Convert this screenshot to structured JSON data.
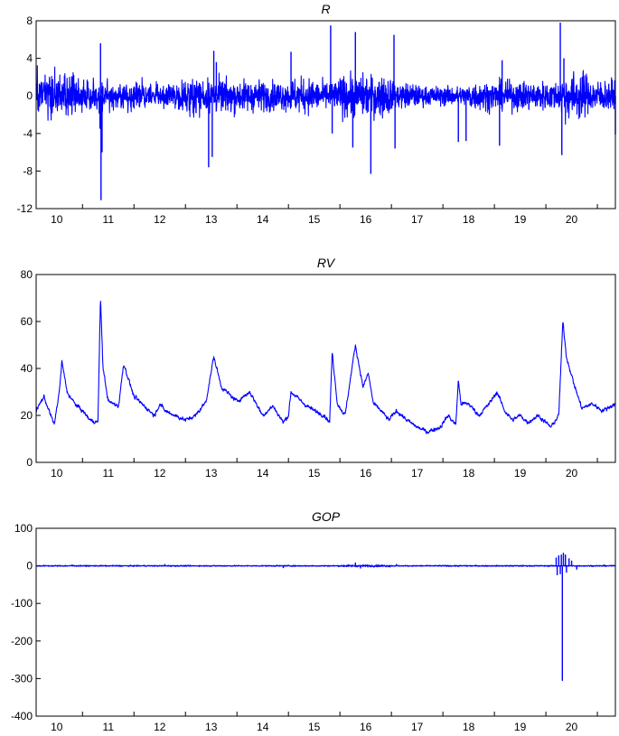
{
  "chart_data": [
    {
      "type": "line",
      "title": "R",
      "ylim": [
        -12,
        8
      ],
      "yticks": [
        8,
        4,
        0,
        -4,
        -8,
        -12
      ],
      "xlim": [
        2009.6,
        2020.85
      ],
      "xticks": [
        "10",
        "11",
        "12",
        "13",
        "14",
        "15",
        "16",
        "17",
        "18",
        "19",
        "20"
      ],
      "series_color": "#0000ff",
      "baseline": 0,
      "noise": 1.3,
      "clip": [
        -4.5,
        3.5
      ],
      "regimes": [
        [
          2009.6,
          1.4
        ],
        [
          2010.5,
          1.1
        ],
        [
          2011.0,
          0.8
        ],
        [
          2012.5,
          1.1
        ],
        [
          2013.2,
          1.0
        ],
        [
          2014.0,
          0.9
        ],
        [
          2014.5,
          1.1
        ],
        [
          2015.0,
          0.9
        ],
        [
          2015.5,
          1.3
        ],
        [
          2016.5,
          0.8
        ],
        [
          2017.0,
          0.6
        ],
        [
          2018.0,
          0.9
        ],
        [
          2019.0,
          0.9
        ],
        [
          2019.8,
          1.5
        ],
        [
          2020.3,
          1.0
        ]
      ],
      "spikes": [
        [
          2010.85,
          5.6
        ],
        [
          2010.86,
          -11.1
        ],
        [
          2010.88,
          -6.0
        ],
        [
          2010.84,
          -3.5
        ],
        [
          2012.95,
          -7.6
        ],
        [
          2013.02,
          -6.5
        ],
        [
          2013.05,
          4.8
        ],
        [
          2013.1,
          3.6
        ],
        [
          2014.55,
          4.7
        ],
        [
          2015.32,
          7.5
        ],
        [
          2015.35,
          -4.0
        ],
        [
          2015.75,
          -5.5
        ],
        [
          2015.8,
          6.8
        ],
        [
          2016.1,
          -8.3
        ],
        [
          2016.55,
          6.5
        ],
        [
          2016.57,
          -5.6
        ],
        [
          2017.8,
          -4.9
        ],
        [
          2017.95,
          -4.8
        ],
        [
          2018.6,
          -5.3
        ],
        [
          2018.65,
          3.8
        ],
        [
          2019.78,
          7.8
        ],
        [
          2019.81,
          -6.3
        ],
        [
          2019.85,
          4.0
        ],
        [
          2020.85,
          -4.1
        ]
      ]
    },
    {
      "type": "line",
      "title": "RV",
      "ylim": [
        0,
        80
      ],
      "yticks": [
        80,
        60,
        40,
        20,
        0
      ],
      "xlim": [
        2009.6,
        2020.85
      ],
      "xticks": [
        "10",
        "11",
        "12",
        "13",
        "14",
        "15",
        "16",
        "17",
        "18",
        "19",
        "20"
      ],
      "series_color": "#0000ff",
      "noise": 1.2,
      "points": [
        [
          2009.6,
          22
        ],
        [
          2009.75,
          28
        ],
        [
          2009.85,
          22
        ],
        [
          2009.95,
          16
        ],
        [
          2010.05,
          30
        ],
        [
          2010.1,
          43
        ],
        [
          2010.2,
          30
        ],
        [
          2010.35,
          25
        ],
        [
          2010.5,
          22
        ],
        [
          2010.65,
          18
        ],
        [
          2010.8,
          17
        ],
        [
          2010.85,
          70
        ],
        [
          2010.9,
          40
        ],
        [
          2011.0,
          26
        ],
        [
          2011.2,
          24
        ],
        [
          2011.3,
          42
        ],
        [
          2011.5,
          28
        ],
        [
          2011.7,
          24
        ],
        [
          2011.9,
          20
        ],
        [
          2012.0,
          25
        ],
        [
          2012.1,
          22
        ],
        [
          2012.3,
          20
        ],
        [
          2012.5,
          18
        ],
        [
          2012.7,
          20
        ],
        [
          2012.9,
          26
        ],
        [
          2013.05,
          45
        ],
        [
          2013.2,
          32
        ],
        [
          2013.5,
          26
        ],
        [
          2013.75,
          30
        ],
        [
          2014.0,
          20
        ],
        [
          2014.2,
          24
        ],
        [
          2014.4,
          17
        ],
        [
          2014.5,
          20
        ],
        [
          2014.55,
          30
        ],
        [
          2014.8,
          25
        ],
        [
          2015.0,
          22
        ],
        [
          2015.2,
          20
        ],
        [
          2015.3,
          17
        ],
        [
          2015.35,
          47
        ],
        [
          2015.45,
          25
        ],
        [
          2015.6,
          20
        ],
        [
          2015.8,
          50
        ],
        [
          2015.95,
          32
        ],
        [
          2016.05,
          38
        ],
        [
          2016.15,
          25
        ],
        [
          2016.3,
          22
        ],
        [
          2016.45,
          18
        ],
        [
          2016.6,
          22
        ],
        [
          2016.8,
          18
        ],
        [
          2017.0,
          15
        ],
        [
          2017.2,
          13
        ],
        [
          2017.45,
          15
        ],
        [
          2017.6,
          20
        ],
        [
          2017.75,
          16
        ],
        [
          2017.8,
          35
        ],
        [
          2017.85,
          25
        ],
        [
          2018.0,
          25
        ],
        [
          2018.2,
          20
        ],
        [
          2018.4,
          25
        ],
        [
          2018.55,
          30
        ],
        [
          2018.7,
          22
        ],
        [
          2018.85,
          18
        ],
        [
          2019.0,
          20
        ],
        [
          2019.15,
          17
        ],
        [
          2019.35,
          20
        ],
        [
          2019.6,
          15
        ],
        [
          2019.75,
          20
        ],
        [
          2019.8,
          45
        ],
        [
          2019.83,
          60
        ],
        [
          2019.9,
          45
        ],
        [
          2020.05,
          33
        ],
        [
          2020.2,
          23
        ],
        [
          2020.4,
          25
        ],
        [
          2020.6,
          22
        ],
        [
          2020.85,
          25
        ]
      ]
    },
    {
      "type": "line",
      "title": "GOP",
      "ylim": [
        -400,
        100
      ],
      "yticks": [
        100,
        0,
        -100,
        -200,
        -300,
        -400
      ],
      "xlim": [
        2009.6,
        2020.85
      ],
      "xticks": [
        "10",
        "11",
        "12",
        "13",
        "14",
        "15",
        "16",
        "17",
        "18",
        "19",
        "20"
      ],
      "series_color": "#0000ff",
      "baseline": 0,
      "noise": 1.2,
      "regimes": [
        [
          2009.6,
          1.0
        ],
        [
          2015.5,
          1.8
        ],
        [
          2016.5,
          1.0
        ]
      ],
      "spikes": [
        [
          2010.3,
          4
        ],
        [
          2012.1,
          5
        ],
        [
          2014.4,
          -6
        ],
        [
          2015.8,
          9
        ],
        [
          2015.9,
          -7
        ],
        [
          2016.6,
          5
        ],
        [
          2019.7,
          22
        ],
        [
          2019.72,
          -25
        ],
        [
          2019.75,
          28
        ],
        [
          2019.78,
          -22
        ],
        [
          2019.8,
          30
        ],
        [
          2019.82,
          -306
        ],
        [
          2019.84,
          35
        ],
        [
          2019.88,
          30
        ],
        [
          2019.9,
          -18
        ],
        [
          2019.95,
          20
        ],
        [
          2020.0,
          14
        ],
        [
          2020.1,
          -10
        ]
      ]
    }
  ]
}
